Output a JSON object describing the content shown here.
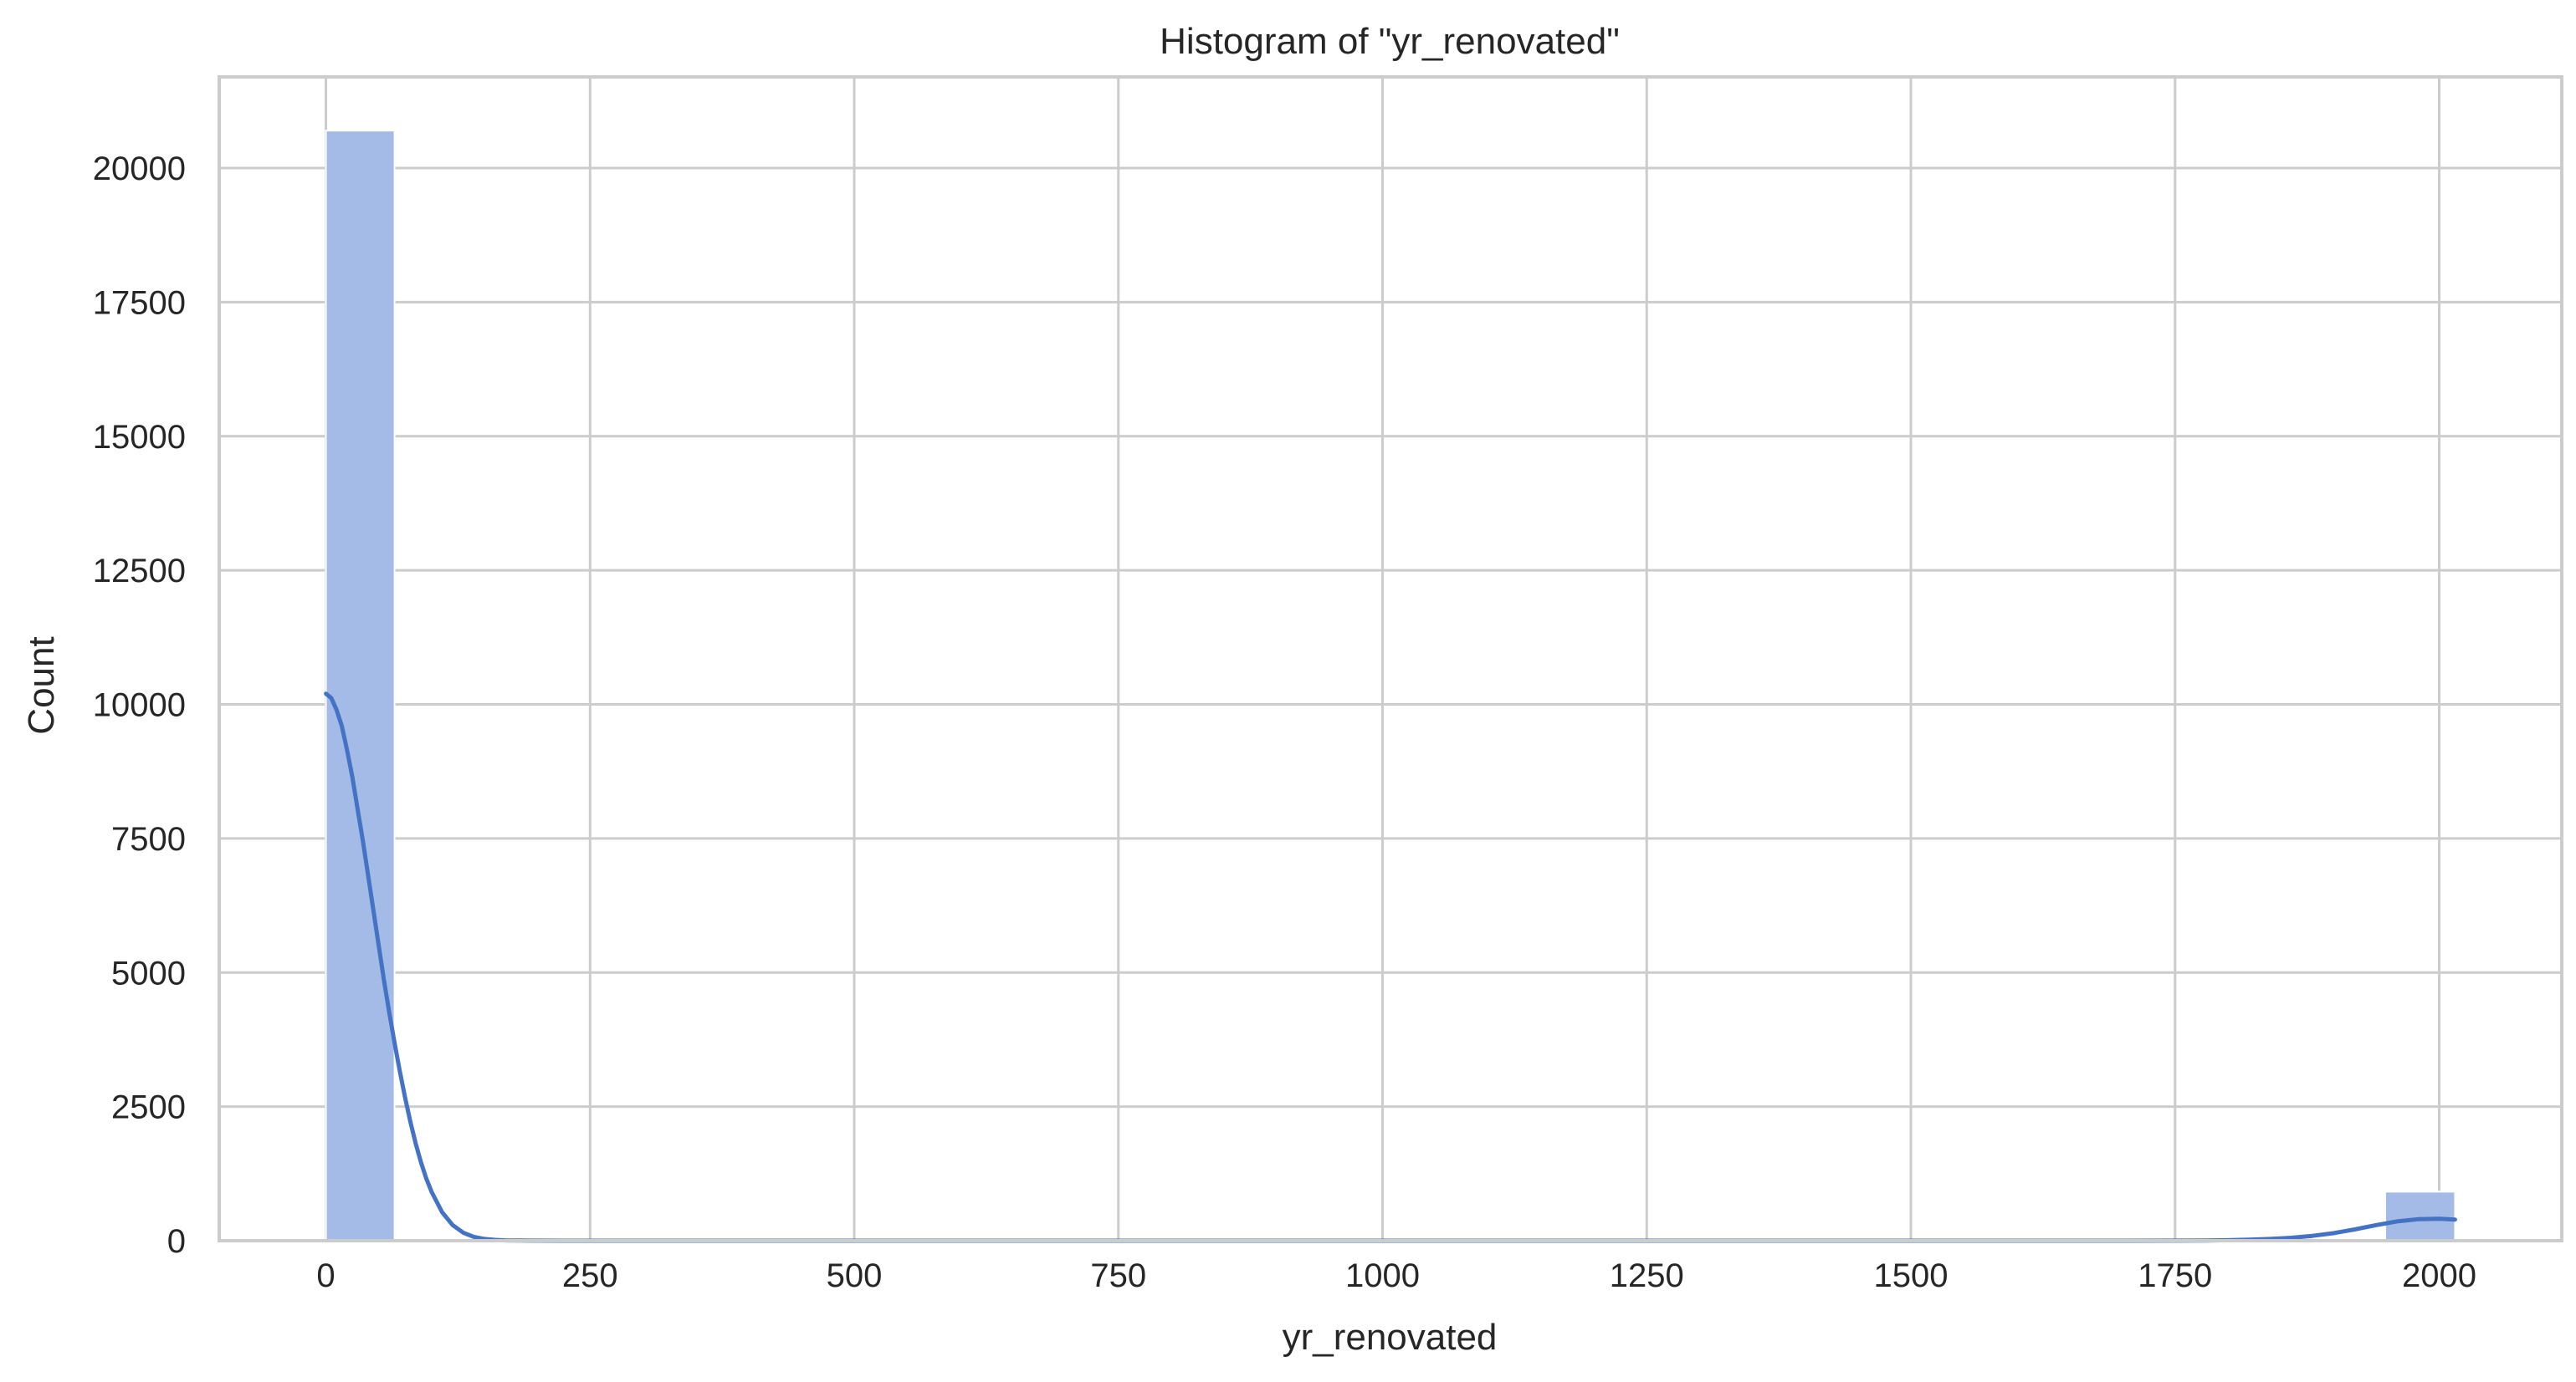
{
  "chart_data": {
    "type": "bar",
    "subtype": "histogram",
    "title": "Histogram of \"yr_renovated\"",
    "xlabel": "yr_renovated",
    "ylabel": "Count",
    "xlim": [
      -101,
      2116
    ],
    "ylim": [
      0,
      21700
    ],
    "x_ticks": [
      0,
      250,
      500,
      750,
      1000,
      1250,
      1500,
      1750,
      2000
    ],
    "y_ticks": [
      0,
      2500,
      5000,
      7500,
      10000,
      12500,
      15000,
      17500,
      20000
    ],
    "grid": true,
    "bins": [
      {
        "x0": 0,
        "x1": 64.96,
        "count": 20699
      },
      {
        "x0": 1948.9,
        "x1": 2015,
        "count": 914
      }
    ],
    "kde": {
      "x": [
        0,
        5,
        10,
        15,
        20,
        25,
        30,
        35,
        40,
        45,
        50,
        55,
        60,
        65,
        70,
        75,
        80,
        85,
        90,
        95,
        100,
        110,
        120,
        130,
        140,
        150,
        160,
        170,
        185,
        200,
        225,
        250,
        300,
        400,
        600,
        800,
        1000,
        1200,
        1400,
        1600,
        1700,
        1750,
        1780,
        1800,
        1820,
        1840,
        1860,
        1880,
        1900,
        1920,
        1940,
        1960,
        1980,
        2000,
        2015
      ],
      "y": [
        10200,
        10120,
        9900,
        9600,
        9150,
        8650,
        8050,
        7450,
        6800,
        6150,
        5500,
        4850,
        4250,
        3680,
        3150,
        2660,
        2210,
        1810,
        1460,
        1160,
        910,
        530,
        290,
        150,
        72,
        33,
        15,
        7,
        3,
        1,
        0,
        0,
        0,
        0,
        0,
        0,
        0,
        0,
        0,
        0,
        0,
        2,
        5,
        10,
        18,
        32,
        55,
        90,
        140,
        210,
        290,
        360,
        400,
        410,
        395
      ]
    },
    "colors": {
      "bar_fill": "#a3bbe6",
      "bar_edge": "#ffffff",
      "kde_line": "#4472c4",
      "grid": "#cccccc",
      "axes": "#cccccc",
      "text": "#262626"
    }
  }
}
